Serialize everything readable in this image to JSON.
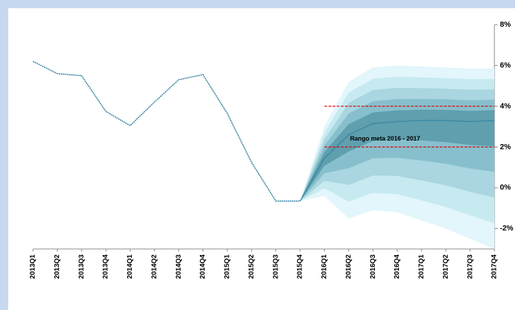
{
  "chart_data": {
    "type": "fan",
    "categories": [
      "2013Q1",
      "2013Q2",
      "2013Q3",
      "2013Q4",
      "2014Q1",
      "2014Q2",
      "2014Q3",
      "2014Q4",
      "2015Q1",
      "2015Q2",
      "2015Q3",
      "2015Q4",
      "2016Q1",
      "2016Q2",
      "2016Q3",
      "2016Q4",
      "2017Q1",
      "2017Q2",
      "2017Q3",
      "2017Q4"
    ],
    "values": [
      6.2,
      5.6,
      5.5,
      3.75,
      3.05,
      4.2,
      5.3,
      5.55,
      3.65,
      1.25,
      -0.65,
      -0.65,
      1.45,
      2.6,
      3.15,
      3.25,
      3.3,
      3.3,
      3.25,
      3.3
    ],
    "color": "#2f7f9e",
    "fan": [
      {
        "color": "#e2f6fb",
        "upper": [
          null,
          null,
          null,
          null,
          null,
          null,
          null,
          null,
          null,
          null,
          null,
          -0.65,
          3.0,
          5.2,
          5.9,
          6.0,
          5.95,
          5.9,
          5.85,
          5.85
        ],
        "lower": [
          null,
          null,
          null,
          null,
          null,
          null,
          null,
          null,
          null,
          null,
          null,
          -0.65,
          -0.4,
          -1.5,
          -1.1,
          -1.2,
          -1.6,
          -2.0,
          -2.5,
          -3.0
        ]
      },
      {
        "color": "#c7eaf1",
        "upper": [
          null,
          null,
          null,
          null,
          null,
          null,
          null,
          null,
          null,
          null,
          null,
          -0.65,
          2.69,
          4.68,
          5.35,
          5.45,
          5.42,
          5.38,
          5.33,
          5.34
        ],
        "lower": [
          null,
          null,
          null,
          null,
          null,
          null,
          null,
          null,
          null,
          null,
          null,
          -0.65,
          -0.03,
          -0.68,
          -0.25,
          -0.31,
          -0.62,
          -0.94,
          -1.35,
          -1.74
        ]
      },
      {
        "color": "#a9d6e0",
        "upper": [
          null,
          null,
          null,
          null,
          null,
          null,
          null,
          null,
          null,
          null,
          null,
          -0.65,
          2.38,
          4.16,
          4.8,
          4.9,
          4.89,
          4.86,
          4.81,
          4.83
        ],
        "lower": [
          null,
          null,
          null,
          null,
          null,
          null,
          null,
          null,
          null,
          null,
          null,
          -0.65,
          0.34,
          0.14,
          0.6,
          0.58,
          0.36,
          0.12,
          -0.2,
          -0.48
        ]
      },
      {
        "color": "#87bfcc",
        "upper": [
          null,
          null,
          null,
          null,
          null,
          null,
          null,
          null,
          null,
          null,
          null,
          -0.65,
          2.07,
          3.64,
          4.25,
          4.35,
          4.36,
          4.34,
          4.29,
          4.32
        ],
        "lower": [
          null,
          null,
          null,
          null,
          null,
          null,
          null,
          null,
          null,
          null,
          null,
          -0.65,
          0.71,
          0.96,
          1.45,
          1.47,
          1.34,
          1.18,
          0.95,
          0.78
        ]
      },
      {
        "color": "#5f9fae",
        "upper": [
          null,
          null,
          null,
          null,
          null,
          null,
          null,
          null,
          null,
          null,
          null,
          -0.65,
          1.76,
          3.12,
          3.7,
          3.8,
          3.83,
          3.82,
          3.77,
          3.81
        ],
        "lower": [
          null,
          null,
          null,
          null,
          null,
          null,
          null,
          null,
          null,
          null,
          null,
          -0.65,
          1.08,
          1.78,
          2.3,
          2.36,
          2.32,
          2.24,
          2.1,
          2.04
        ]
      }
    ],
    "reference_lines": [
      {
        "value": 4,
        "color": "#e00000"
      },
      {
        "value": 2,
        "color": "#e00000"
      }
    ],
    "annotation": "Rango meta 2016 - 2017",
    "ylim": [
      -3,
      8
    ],
    "yticks": [
      {
        "value": 8,
        "label": "8%"
      },
      {
        "value": 6,
        "label": "6%"
      },
      {
        "value": 4,
        "label": "4%"
      },
      {
        "value": 2,
        "label": "2%"
      },
      {
        "value": 0,
        "label": "0%"
      },
      {
        "value": -2,
        "label": "-2%"
      }
    ]
  }
}
